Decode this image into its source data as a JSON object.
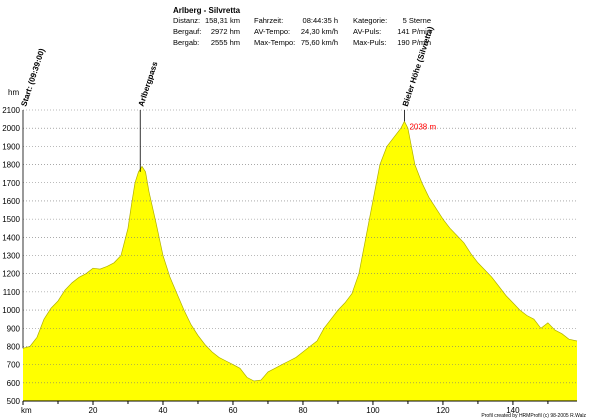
{
  "stats": {
    "title": "Arlberg - Silvretta",
    "rows": [
      [
        {
          "label": "Distanz:",
          "value": "158,31 km"
        },
        {
          "label": "Bergauf:",
          "value": "2972 hm"
        },
        {
          "label": "Bergab:",
          "value": "2555 hm"
        }
      ],
      [
        {
          "label": "Fahrzeit:",
          "value": "08:44:35 h"
        },
        {
          "label": "AV-Tempo:",
          "value": "24,30 km/h"
        },
        {
          "label": "Max-Tempo:",
          "value": "75,60 km/h"
        }
      ],
      [
        {
          "label": "Kategorie:",
          "value": "5 Sterne"
        },
        {
          "label": "AV-Puls:",
          "value": "141 P/min"
        },
        {
          "label": "Max-Puls:",
          "value": "190 P/min"
        }
      ]
    ]
  },
  "footer": "Profil created by HRMProfil (c) 98-2005 R.Walz",
  "colors": {
    "fill": "#ffff00",
    "grid": "#777777",
    "peak_label": "#ff0000"
  },
  "chart_data": {
    "type": "area",
    "xlabel": "km",
    "ylabel": "hm",
    "xlim": [
      0,
      158.31
    ],
    "ylim": [
      500,
      2100
    ],
    "xticks": [
      20,
      40,
      60,
      80,
      100,
      120,
      140
    ],
    "yticks": [
      500,
      600,
      700,
      800,
      900,
      1000,
      1100,
      1200,
      1300,
      1400,
      1500,
      1600,
      1700,
      1800,
      1900,
      2000,
      2100
    ],
    "grid": true,
    "series": [
      {
        "x": [
          0,
          2,
          4,
          6,
          8,
          10,
          12,
          14,
          16,
          18,
          20,
          22,
          24,
          26,
          28,
          30,
          31,
          32,
          33,
          34,
          35,
          36,
          38,
          40,
          42,
          44,
          46,
          48,
          50,
          52,
          54,
          56,
          58,
          60,
          62,
          64,
          66,
          68,
          70,
          72,
          74,
          76,
          78,
          80,
          82,
          84,
          86,
          88,
          90,
          92,
          94,
          96,
          98,
          100,
          102,
          104,
          106,
          108,
          109,
          110,
          111,
          112,
          114,
          116,
          118,
          120,
          122,
          124,
          126,
          128,
          130,
          132,
          134,
          136,
          138,
          140,
          142,
          144,
          146,
          148,
          150,
          152,
          154,
          156,
          158.31
        ],
        "y": [
          790,
          800,
          850,
          950,
          1010,
          1050,
          1110,
          1150,
          1180,
          1200,
          1230,
          1225,
          1240,
          1260,
          1300,
          1450,
          1580,
          1700,
          1760,
          1790,
          1760,
          1650,
          1480,
          1300,
          1180,
          1090,
          1000,
          920,
          860,
          810,
          770,
          740,
          720,
          700,
          680,
          630,
          610,
          615,
          660,
          680,
          700,
          720,
          740,
          770,
          800,
          830,
          900,
          950,
          1000,
          1040,
          1090,
          1200,
          1400,
          1600,
          1800,
          1900,
          1950,
          2000,
          2038,
          2000,
          1900,
          1800,
          1700,
          1620,
          1560,
          1500,
          1450,
          1410,
          1370,
          1310,
          1260,
          1220,
          1180,
          1130,
          1080,
          1040,
          1000,
          970,
          950,
          900,
          930,
          890,
          870,
          840,
          830
        ]
      }
    ],
    "annotations": [
      {
        "x": 0,
        "text": "Start: (09:39:00)"
      },
      {
        "x": 33.5,
        "text": "Arlbergpass"
      },
      {
        "x": 109,
        "text": "Bieler Höhe (Silvretta)"
      }
    ],
    "peak_label": {
      "x": 109,
      "y": 2038,
      "text": "2038 m"
    }
  }
}
